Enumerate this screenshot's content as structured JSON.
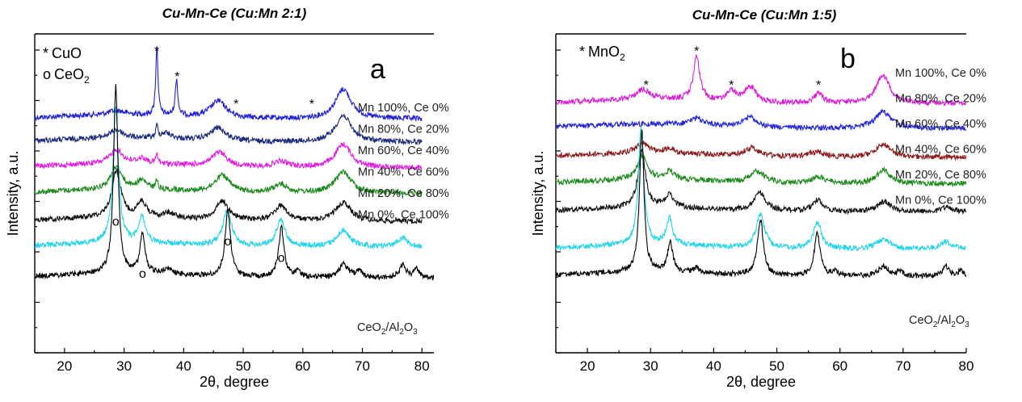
{
  "chart_data": [
    {
      "type": "line",
      "panel": "a",
      "title": "Cu-Mn-Ce (Cu:Mn 2:1)",
      "xlabel": "2θ, degree",
      "ylabel": "Intensity, a.u.",
      "xlim": [
        15,
        82
      ],
      "x_ticks": [
        20,
        30,
        40,
        50,
        60,
        70,
        80
      ],
      "panel_letter": "a",
      "legend": {
        "lines": [
          {
            "symbol": "*",
            "label": "CuO",
            "sub": ""
          },
          {
            "symbol": "o",
            "label": "CeO",
            "sub": "2"
          }
        ]
      },
      "series": [
        {
          "name": "Mn 100%, Ce 0%",
          "color": "#1f1fd6",
          "base": 0.5,
          "x_end": 80,
          "peaks": [
            [
              35.5,
              4.2,
              0.22
            ],
            [
              38.8,
              2.2,
              0.25
            ],
            [
              45.8,
              1.0,
              1.6
            ],
            [
              66.8,
              1.8,
              1.6
            ],
            [
              28.7,
              0.25,
              1.5
            ]
          ]
        },
        {
          "name": "Mn 80%, Ce 20%",
          "color": "#1b2a7a",
          "base": 1.9,
          "x_end": 80,
          "peaks": [
            [
              28.7,
              0.5,
              1.2
            ],
            [
              35.5,
              0.7,
              0.2
            ],
            [
              37,
              0.35,
              1
            ],
            [
              45.8,
              0.8,
              1.5
            ],
            [
              66.8,
              1.6,
              1.6
            ]
          ]
        },
        {
          "name": "Mn 60%, Ce 40%",
          "color": "#e020e0",
          "base": 3.45,
          "x_end": 80,
          "peaks": [
            [
              28.7,
              0.85,
              1.2
            ],
            [
              33,
              0.3,
              1
            ],
            [
              35.5,
              0.55,
              0.2
            ],
            [
              46,
              0.85,
              1.5
            ],
            [
              56.3,
              0.35,
              1.5
            ],
            [
              66.8,
              1.4,
              1.6
            ]
          ]
        },
        {
          "name": "Mn 40%, Ce 60%",
          "color": "#1f8a1f",
          "base": 5.0,
          "x_end": 80,
          "peaks": [
            [
              28.7,
              1.35,
              1.1
            ],
            [
              33,
              0.5,
              1
            ],
            [
              35.5,
              0.55,
              0.2
            ],
            [
              46.5,
              1.0,
              1.5
            ],
            [
              56.3,
              0.5,
              1.4
            ],
            [
              66.8,
              1.3,
              1.6
            ]
          ]
        },
        {
          "name": "Mn 20%, Ce 80%",
          "color": "#111111",
          "base": 6.7,
          "x_end": 80,
          "peaks": [
            [
              28.7,
              2.8,
              0.9
            ],
            [
              33,
              0.9,
              0.9
            ],
            [
              37.5,
              0.3,
              1
            ],
            [
              46.5,
              1.15,
              1.3
            ],
            [
              56.3,
              0.9,
              1.3
            ],
            [
              66.8,
              1.15,
              1.5
            ]
          ]
        },
        {
          "name": "Mn 0%, Ce 100%",
          "color": "#22d4e8",
          "base": 8.25,
          "x_end": 80,
          "peaks": [
            [
              28.6,
              8.2,
              0.55
            ],
            [
              33.0,
              1.6,
              0.6
            ],
            [
              47.3,
              2.1,
              0.9
            ],
            [
              56.3,
              1.6,
              0.9
            ],
            [
              66.8,
              1.0,
              1.3
            ],
            [
              76.8,
              0.55,
              1.0
            ]
          ]
        },
        {
          "name": "CeO2/Al2O3",
          "color": "#000000",
          "base": 10.1,
          "x_end": 82,
          "peaks": [
            [
              28.6,
              11.3,
              0.45
            ],
            [
              33.1,
              2.4,
              0.5
            ],
            [
              37.3,
              0.4,
              0.6
            ],
            [
              47.4,
              4.0,
              0.55
            ],
            [
              56.4,
              3.0,
              0.55
            ],
            [
              59.2,
              0.4,
              0.5
            ],
            [
              66.9,
              0.8,
              0.9
            ],
            [
              69.4,
              0.35,
              0.6
            ],
            [
              76.8,
              0.8,
              0.6
            ],
            [
              79.1,
              0.5,
              0.5
            ]
          ]
        }
      ],
      "series_label_texts": [
        "Mn 100%, Ce 0%",
        "Mn 80%, Ce 20%",
        "Mn 60%, Ce 40%",
        "Mn 40%, Ce 60%",
        "Mn 20%, Ce 80%",
        "Mn 0%, Ce 100%"
      ],
      "bottom_label": {
        "parts": [
          [
            "CeO",
            ""
          ],
          [
            "2",
            "sub"
          ],
          [
            "/Al",
            ""
          ],
          [
            "2",
            "sub"
          ],
          [
            "O",
            ""
          ],
          [
            "3",
            "sub"
          ]
        ]
      },
      "markers": [
        {
          "symbol": "*",
          "x": 35.5,
          "y": -3.35
        },
        {
          "symbol": "*",
          "x": 38.9,
          "y": -1.8
        },
        {
          "symbol": "*",
          "x": 48.8,
          "y": -0.15
        },
        {
          "symbol": "*",
          "x": 61.5,
          "y": -0.15
        },
        {
          "symbol": "o",
          "x": 28.6,
          "y": 6.95
        },
        {
          "symbol": "o",
          "x": 33.1,
          "y": 10.1
        },
        {
          "symbol": "o",
          "x": 47.4,
          "y": 8.15
        },
        {
          "symbol": "o",
          "x": 56.4,
          "y": 9.15
        }
      ]
    },
    {
      "type": "line",
      "panel": "b",
      "title": "Cu-Mn-Ce (Cu:Mn 1:5)",
      "xlabel": "2θ, degree",
      "ylabel": "Intensity, a.u.",
      "xlim": [
        15,
        80
      ],
      "x_ticks": [
        20,
        30,
        40,
        50,
        60,
        70,
        80
      ],
      "panel_letter": "b",
      "legend": {
        "lines": [
          {
            "symbol": "*",
            "label": "MnO",
            "sub": "2"
          }
        ]
      },
      "series": [
        {
          "name": "Mn 100%, Ce 0%",
          "color": "#d91fd9",
          "base": 0.3,
          "x_end": 80,
          "peaks": [
            [
              37.3,
              2.6,
              0.6
            ],
            [
              28.8,
              0.6,
              1.2
            ],
            [
              42.8,
              0.6,
              0.8
            ],
            [
              45.8,
              0.9,
              1.1
            ],
            [
              56.6,
              0.6,
              0.8
            ],
            [
              66.8,
              1.7,
              1.3
            ]
          ]
        },
        {
          "name": "Mn 80%, Ce 20%",
          "color": "#2323d9",
          "base": 1.8,
          "x_end": 80,
          "peaks": [
            [
              37.3,
              0.4,
              1.2
            ],
            [
              45.8,
              0.6,
              1.3
            ],
            [
              66.8,
              1.0,
              1.5
            ]
          ]
        },
        {
          "name": "Mn 60%, Ce 40%",
          "color": "#8b1a1a",
          "base": 3.55,
          "x_end": 80,
          "peaks": [
            [
              28.7,
              0.6,
              1.2
            ],
            [
              33,
              0.25,
              1.0
            ],
            [
              46,
              0.5,
              1.4
            ],
            [
              56.3,
              0.3,
              1.3
            ],
            [
              66.9,
              0.8,
              1.4
            ]
          ]
        },
        {
          "name": "Mn 40%, Ce 60%",
          "color": "#1f8a1f",
          "base": 5.15,
          "x_end": 80,
          "peaks": [
            [
              28.7,
              1.45,
              0.9
            ],
            [
              33,
              0.5,
              0.9
            ],
            [
              47,
              0.7,
              1.3
            ],
            [
              56.5,
              0.4,
              1.2
            ],
            [
              66.9,
              0.8,
              1.3
            ]
          ]
        },
        {
          "name": "Mn 20%, Ce 80%",
          "color": "#111111",
          "base": 6.85,
          "x_end": 80,
          "peaks": [
            [
              28.6,
              3.4,
              0.7
            ],
            [
              33,
              0.75,
              0.8
            ],
            [
              47.3,
              1.1,
              1.1
            ],
            [
              56.5,
              0.7,
              1.0
            ],
            [
              67,
              0.6,
              1.2
            ],
            [
              77,
              0.3,
              1.0
            ]
          ]
        },
        {
          "name": "Mn 0%, Ce 100%",
          "color": "#22d4e8",
          "base": 9.1,
          "x_end": 80,
          "peaks": [
            [
              28.5,
              7.2,
              0.5
            ],
            [
              33.0,
              1.6,
              0.55
            ],
            [
              47.4,
              2.0,
              0.8
            ],
            [
              56.4,
              1.6,
              0.8
            ],
            [
              66.9,
              0.6,
              1.2
            ],
            [
              76.8,
              0.45,
              1.0
            ]
          ]
        },
        {
          "name": "CeO2/Al2O3",
          "color": "#000000",
          "base": 10.75,
          "x_end": 80,
          "peaks": [
            [
              28.6,
              8.7,
              0.42
            ],
            [
              33.1,
              1.8,
              0.5
            ],
            [
              37.3,
              0.3,
              0.6
            ],
            [
              47.4,
              3.4,
              0.55
            ],
            [
              56.4,
              2.6,
              0.55
            ],
            [
              59.2,
              0.3,
              0.5
            ],
            [
              66.9,
              0.6,
              0.9
            ],
            [
              69.4,
              0.25,
              0.6
            ],
            [
              76.8,
              0.6,
              0.6
            ],
            [
              79.1,
              0.3,
              0.5
            ]
          ]
        }
      ],
      "series_label_texts": [
        "Mn 100%, Ce 0%",
        "Mn 80%, Ce 20%",
        "Mn 60%, Ce 40%",
        "Mn 40%, Ce 60%",
        "Mn 20%, Ce 80%",
        "Mn 0%, Ce 100%"
      ],
      "bottom_label": {
        "parts": [
          [
            "CeO",
            ""
          ],
          [
            "2",
            "sub"
          ],
          [
            "/Al",
            ""
          ],
          [
            "2",
            "sub"
          ],
          [
            "O",
            ""
          ],
          [
            "3",
            "sub"
          ]
        ]
      },
      "markers": [
        {
          "symbol": "*",
          "x": 37.3,
          "y": -2.6
        },
        {
          "symbol": "*",
          "x": 29.3,
          "y": -0.55
        },
        {
          "symbol": "*",
          "x": 42.8,
          "y": -0.55
        },
        {
          "symbol": "*",
          "x": 56.6,
          "y": -0.55
        }
      ]
    }
  ]
}
